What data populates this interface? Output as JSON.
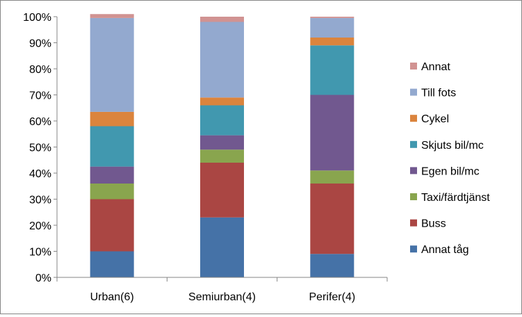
{
  "chart_data": {
    "type": "bar",
    "stacked": true,
    "percent": true,
    "categories": [
      "Urban(6)",
      "Semiurban(4)",
      "Perifer(4)"
    ],
    "ylim": [
      0,
      100
    ],
    "yticks": [
      "0%",
      "10%",
      "20%",
      "30%",
      "40%",
      "50%",
      "60%",
      "70%",
      "80%",
      "90%",
      "100%"
    ],
    "grid": false,
    "legend_position": "right",
    "series": [
      {
        "name": "Annat tåg",
        "color": "#4572A7",
        "values": [
          10,
          23,
          9
        ]
      },
      {
        "name": "Buss",
        "color": "#AA4643",
        "values": [
          20,
          21,
          27
        ]
      },
      {
        "name": "Taxi/färdtjänst",
        "color": "#89A54E",
        "values": [
          6,
          5,
          5
        ]
      },
      {
        "name": "Egen bil/mc",
        "color": "#71588F",
        "values": [
          6.5,
          5.5,
          29
        ]
      },
      {
        "name": "Skjuts bil/mc",
        "color": "#4198AF",
        "values": [
          15.5,
          11.5,
          19
        ]
      },
      {
        "name": "Cykel",
        "color": "#DB843D",
        "values": [
          5.5,
          3,
          3
        ]
      },
      {
        "name": "Till fots",
        "color": "#93A9CF",
        "values": [
          36,
          29,
          7.5
        ]
      },
      {
        "name": "Annat",
        "color": "#D19392",
        "values": [
          1.5,
          2,
          0.5
        ]
      }
    ]
  }
}
